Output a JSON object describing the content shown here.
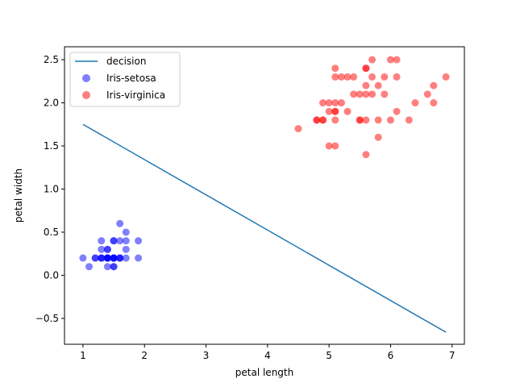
{
  "chart_data": {
    "type": "scatter",
    "xlabel": "petal length",
    "ylabel": "petal width",
    "xlim": [
      0.7,
      7.2
    ],
    "ylim": [
      -0.8,
      2.65
    ],
    "xticks": [
      1,
      2,
      3,
      4,
      5,
      6,
      7
    ],
    "yticks": [
      -0.5,
      0.0,
      0.5,
      1.0,
      1.5,
      2.0,
      2.5
    ],
    "xtick_labels": [
      "1",
      "2",
      "3",
      "4",
      "5",
      "6",
      "7"
    ],
    "ytick_labels": [
      "−0.5",
      "0.0",
      "0.5",
      "1.0",
      "1.5",
      "2.0",
      "2.5"
    ],
    "grid": false,
    "legend_position": "top-left",
    "line": {
      "name": "decision",
      "color": "#1f77b4",
      "x": [
        1.0,
        6.9
      ],
      "y": [
        1.75,
        -0.66
      ]
    },
    "series": [
      {
        "name": "Iris-setosa",
        "color": "#0000ff",
        "alpha": 0.5,
        "points": [
          [
            1.0,
            0.2
          ],
          [
            1.1,
            0.1
          ],
          [
            1.2,
            0.2
          ],
          [
            1.2,
            0.2
          ],
          [
            1.3,
            0.2
          ],
          [
            1.3,
            0.3
          ],
          [
            1.3,
            0.4
          ],
          [
            1.3,
            0.2
          ],
          [
            1.3,
            0.2
          ],
          [
            1.4,
            0.2
          ],
          [
            1.4,
            0.2
          ],
          [
            1.4,
            0.1
          ],
          [
            1.4,
            0.3
          ],
          [
            1.4,
            0.2
          ],
          [
            1.4,
            0.3
          ],
          [
            1.4,
            0.2
          ],
          [
            1.4,
            0.2
          ],
          [
            1.5,
            0.2
          ],
          [
            1.5,
            0.1
          ],
          [
            1.5,
            0.4
          ],
          [
            1.5,
            0.2
          ],
          [
            1.5,
            0.2
          ],
          [
            1.5,
            0.4
          ],
          [
            1.5,
            0.1
          ],
          [
            1.5,
            0.2
          ],
          [
            1.5,
            0.2
          ],
          [
            1.6,
            0.2
          ],
          [
            1.6,
            0.6
          ],
          [
            1.6,
            0.2
          ],
          [
            1.6,
            0.4
          ],
          [
            1.6,
            0.2
          ],
          [
            1.7,
            0.4
          ],
          [
            1.7,
            0.3
          ],
          [
            1.7,
            0.5
          ],
          [
            1.7,
            0.2
          ],
          [
            1.9,
            0.2
          ],
          [
            1.9,
            0.4
          ]
        ]
      },
      {
        "name": "Iris-virginica",
        "color": "#ff0000",
        "alpha": 0.5,
        "points": [
          [
            4.5,
            1.7
          ],
          [
            4.8,
            1.8
          ],
          [
            4.8,
            1.8
          ],
          [
            4.9,
            1.8
          ],
          [
            4.9,
            1.8
          ],
          [
            4.9,
            2.0
          ],
          [
            5.0,
            1.5
          ],
          [
            5.0,
            2.0
          ],
          [
            5.0,
            1.9
          ],
          [
            5.1,
            1.9
          ],
          [
            5.1,
            2.0
          ],
          [
            5.1,
            2.3
          ],
          [
            5.1,
            1.8
          ],
          [
            5.1,
            1.5
          ],
          [
            5.1,
            1.9
          ],
          [
            5.1,
            2.4
          ],
          [
            5.2,
            2.0
          ],
          [
            5.2,
            2.3
          ],
          [
            5.3,
            1.9
          ],
          [
            5.3,
            2.3
          ],
          [
            5.4,
            2.1
          ],
          [
            5.4,
            2.3
          ],
          [
            5.5,
            1.8
          ],
          [
            5.5,
            2.1
          ],
          [
            5.5,
            1.8
          ],
          [
            5.6,
            1.8
          ],
          [
            5.6,
            2.4
          ],
          [
            5.6,
            2.2
          ],
          [
            5.6,
            2.1
          ],
          [
            5.6,
            1.4
          ],
          [
            5.6,
            2.4
          ],
          [
            5.7,
            2.5
          ],
          [
            5.7,
            2.3
          ],
          [
            5.7,
            2.1
          ],
          [
            5.8,
            1.8
          ],
          [
            5.8,
            2.2
          ],
          [
            5.8,
            1.6
          ],
          [
            5.9,
            2.3
          ],
          [
            5.9,
            2.1
          ],
          [
            6.0,
            2.5
          ],
          [
            6.0,
            1.8
          ],
          [
            6.1,
            1.9
          ],
          [
            6.1,
            2.5
          ],
          [
            6.1,
            2.3
          ],
          [
            6.3,
            1.8
          ],
          [
            6.4,
            2.0
          ],
          [
            6.6,
            2.1
          ],
          [
            6.7,
            2.2
          ],
          [
            6.7,
            2.0
          ],
          [
            6.9,
            2.3
          ]
        ]
      }
    ]
  }
}
